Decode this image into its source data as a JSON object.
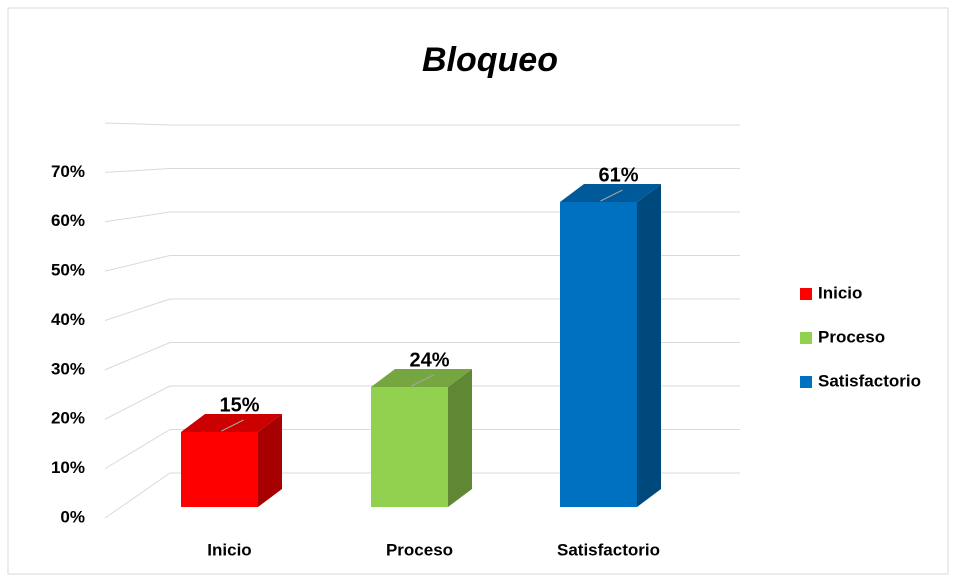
{
  "chart_data": {
    "type": "bar3d",
    "title": "Bloqueo",
    "categories": [
      "Inicio",
      "Proceso",
      "Satisfactorio"
    ],
    "values": [
      15,
      24,
      61
    ],
    "value_labels": [
      "15%",
      "24%",
      "61%"
    ],
    "colors": [
      "#ff0000",
      "#92d050",
      "#0070c0"
    ],
    "ylim": [
      0,
      80
    ],
    "yticks": [
      {
        "value": 0,
        "label": "0%"
      },
      {
        "value": 10,
        "label": "10%"
      },
      {
        "value": 20,
        "label": "20%"
      },
      {
        "value": 30,
        "label": "30%"
      },
      {
        "value": 40,
        "label": "40%"
      },
      {
        "value": 50,
        "label": "50%"
      },
      {
        "value": 60,
        "label": "60%"
      },
      {
        "value": 70,
        "label": "70%"
      }
    ],
    "grid": true,
    "legend": "right"
  }
}
